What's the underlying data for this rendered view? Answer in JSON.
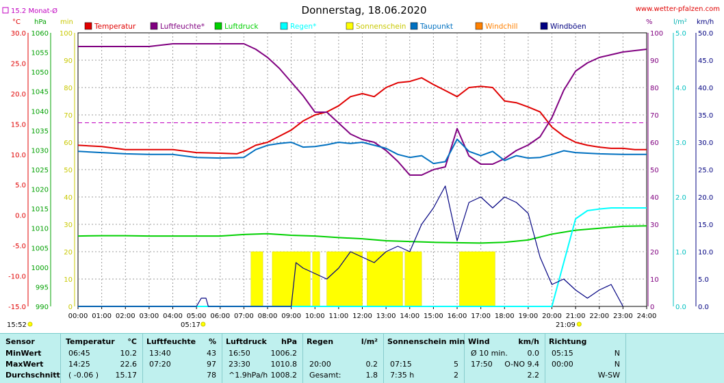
{
  "title": "Donnerstag, 18.06.2020",
  "site": "www.wetter-pfalzen.com",
  "month_avg_label": "15.2 Monat-Ø",
  "axis_units": {
    "temp": "°C",
    "press": "hPa",
    "min": "min",
    "percent": "%",
    "rain": "l/m²",
    "wind": "km/h"
  },
  "legend": [
    {
      "label": "Temperatur",
      "color": "#e00000"
    },
    {
      "label": "Luftfeuchte*",
      "color": "#800080"
    },
    {
      "label": "Luftdruck",
      "color": "#00d000"
    },
    {
      "label": "Regen*",
      "color": "#00ffff"
    },
    {
      "label": "Sonnenschein",
      "color": "#ffff00"
    },
    {
      "label": "Taupunkt",
      "color": "#0070c0"
    },
    {
      "label": "Windchill",
      "color": "#ff8000"
    },
    {
      "label": "Windböen",
      "color": "#000080"
    }
  ],
  "annotations": {
    "sunrise": "05:17",
    "sunset": "21:09",
    "time_now": "15:52"
  },
  "chart_data": {
    "type": "line",
    "x_label_ticks": [
      "00:00",
      "01:00",
      "02:00",
      "03:00",
      "04:00",
      "05:00",
      "06:00",
      "07:00",
      "08:00",
      "09:00",
      "10:00",
      "11:00",
      "12:00",
      "13:00",
      "14:00",
      "15:00",
      "16:00",
      "17:00",
      "18:00",
      "19:00",
      "20:00",
      "21:00",
      "22:00",
      "23:00",
      "24:00"
    ],
    "axes": {
      "temp": {
        "range": [
          -15,
          30
        ],
        "ticks": [
          "30.0",
          "25.0",
          "20.0",
          "15.0",
          "10.0",
          "5.0",
          "0.0",
          "-5.0",
          "-10.0",
          "-15.0"
        ]
      },
      "press": {
        "range": [
          990,
          1060
        ],
        "ticks": [
          "1060",
          "1055",
          "1050",
          "1045",
          "1040",
          "1035",
          "1030",
          "1025",
          "1020",
          "1015",
          "1010",
          "1005",
          "1000",
          "995",
          "990"
        ]
      },
      "sun_min": {
        "range": [
          0,
          100
        ],
        "ticks": [
          "100",
          "90",
          "80",
          "70",
          "60",
          "50",
          "40",
          "30",
          "20",
          "10",
          "0"
        ]
      },
      "humidity": {
        "range": [
          0,
          100
        ],
        "ticks": [
          "100",
          "90",
          "80",
          "70",
          "60",
          "50",
          "40",
          "30",
          "20",
          "10",
          "0"
        ]
      },
      "rain": {
        "range": [
          0,
          5
        ],
        "ticks": [
          "5.0",
          "4.0",
          "3.0",
          "2.0",
          "1.0",
          "0.0"
        ]
      },
      "wind": {
        "range": [
          0,
          50
        ],
        "ticks": [
          "50.0",
          "45.0",
          "40.0",
          "35.0",
          "30.0",
          "25.0",
          "20.0",
          "15.0",
          "10.0",
          "5.0",
          "0.0"
        ]
      }
    },
    "month_avg_temp": 15.2,
    "series": [
      {
        "name": "Temperatur",
        "axis": "temp",
        "color": "#e00000",
        "x": [
          0,
          1,
          2,
          3,
          4,
          5,
          6,
          6.7,
          7,
          7.5,
          8,
          8.5,
          9,
          9.5,
          10,
          10.5,
          11,
          11.5,
          12,
          12.5,
          13,
          13.5,
          14,
          14.5,
          15,
          15.5,
          16,
          16.5,
          17,
          17.5,
          18,
          18.5,
          19,
          19.5,
          20,
          20.5,
          21,
          21.5,
          22,
          22.5,
          23,
          23.5,
          24
        ],
        "y": [
          11.5,
          11.3,
          10.8,
          10.8,
          10.8,
          10.3,
          10.2,
          10.1,
          10.5,
          11.5,
          12,
          13,
          14,
          15.5,
          16.5,
          17,
          18,
          19.5,
          20,
          19.5,
          21,
          21.8,
          22,
          22.6,
          21.5,
          20.5,
          19.5,
          21,
          21.2,
          21,
          18.8,
          18.5,
          17.8,
          17,
          14.5,
          13,
          12,
          11.5,
          11.2,
          11,
          11,
          10.8,
          10.8
        ]
      },
      {
        "name": "Luftfeuchte*",
        "axis": "humidity",
        "color": "#800080",
        "x": [
          0,
          1,
          2,
          3,
          4,
          5,
          6,
          7,
          7.5,
          8,
          8.5,
          9,
          9.5,
          10,
          10.5,
          11,
          11.5,
          12,
          12.5,
          13,
          13.5,
          14,
          14.5,
          15,
          15.5,
          16,
          16.5,
          17,
          17.5,
          18,
          18.5,
          19,
          19.5,
          20,
          20.5,
          21,
          21.5,
          22,
          22.5,
          23,
          23.5,
          24
        ],
        "y": [
          95,
          95,
          95,
          95,
          96,
          96,
          96,
          96,
          94,
          91,
          87,
          82,
          77,
          71,
          71,
          67,
          63,
          61,
          60,
          57,
          53,
          48,
          48,
          50,
          51,
          65,
          55,
          52,
          52,
          54,
          57,
          59,
          62,
          69,
          79,
          86,
          89,
          91,
          92,
          93,
          93.5,
          94
        ]
      },
      {
        "name": "Luftdruck",
        "axis": "press",
        "color": "#00d000",
        "x": [
          0,
          1,
          2,
          3,
          4,
          5,
          6,
          7,
          8,
          9,
          10,
          11,
          12,
          13,
          14,
          15,
          16,
          17,
          18,
          19,
          20,
          21,
          22,
          23,
          24
        ],
        "y": [
          1008,
          1008.1,
          1008.1,
          1008,
          1008,
          1008,
          1008,
          1008.4,
          1008.6,
          1008.2,
          1008,
          1007.6,
          1007.3,
          1006.8,
          1006.6,
          1006.4,
          1006.3,
          1006.2,
          1006.4,
          1007,
          1008.5,
          1009.5,
          1010,
          1010.5,
          1010.6
        ]
      },
      {
        "name": "Regen*",
        "axis": "rain",
        "color": "#00ffff",
        "x": [
          0,
          20,
          20.5,
          21,
          21.5,
          22,
          22.5,
          23,
          23.5,
          24
        ],
        "y": [
          0,
          0,
          0.8,
          1.6,
          1.75,
          1.78,
          1.8,
          1.8,
          1.8,
          1.8
        ]
      },
      {
        "name": "Taupunkt",
        "axis": "temp",
        "color": "#0070c0",
        "x": [
          0,
          1,
          2,
          3,
          4,
          5,
          6,
          7,
          7.5,
          8,
          8.5,
          9,
          9.5,
          10,
          10.5,
          11,
          11.5,
          12,
          12.5,
          13,
          13.5,
          14,
          14.5,
          15,
          15.5,
          16,
          16.5,
          17,
          17.5,
          18,
          18.5,
          19,
          19.5,
          20,
          20.5,
          21,
          22,
          23,
          24
        ],
        "y": [
          10.5,
          10.3,
          10.1,
          10,
          10,
          9.5,
          9.4,
          9.5,
          10.8,
          11.5,
          11.8,
          12,
          11.2,
          11.3,
          11.6,
          12,
          11.8,
          12,
          11.5,
          11,
          10,
          9.5,
          9.8,
          8.5,
          8.8,
          12.5,
          10.5,
          9.8,
          10.5,
          9,
          9.8,
          9.4,
          9.5,
          10,
          10.6,
          10.3,
          10.1,
          10,
          10
        ]
      },
      {
        "name": "Windböen",
        "axis": "wind",
        "color": "#000080",
        "x": [
          0,
          5,
          5.2,
          5.4,
          5.5,
          9,
          9.2,
          9.5,
          10,
          10.5,
          11,
          11.5,
          12,
          12.5,
          13,
          13.5,
          14,
          14.5,
          15,
          15.5,
          16,
          16.5,
          17,
          17.5,
          18,
          18.5,
          19,
          19.5,
          20,
          20.5,
          21,
          21.5,
          22,
          22.5,
          23
        ],
        "y": [
          0,
          0,
          1.5,
          1.5,
          0,
          0,
          8,
          7,
          6,
          5,
          7,
          10,
          9,
          8,
          10,
          11,
          10,
          15,
          18,
          22,
          12,
          19,
          20,
          18,
          20,
          19,
          17,
          9,
          4,
          5,
          3,
          1.5,
          3,
          4,
          0
        ]
      }
    ],
    "sunshine_bars": [
      {
        "from": 7.3,
        "to": 7.8
      },
      {
        "from": 8.2,
        "to": 9.8
      },
      {
        "from": 9.9,
        "to": 10.2
      },
      {
        "from": 10.5,
        "to": 12.0
      },
      {
        "from": 12.2,
        "to": 13.7
      },
      {
        "from": 13.8,
        "to": 14.5
      },
      {
        "from": 16.1,
        "to": 17.6
      }
    ]
  },
  "stats": {
    "headers": {
      "sensor": "Sensor",
      "temp": "Temperatur",
      "temp_unit": "°C",
      "hum": "Luftfeuchte",
      "hum_unit": "%",
      "press": "Luftdruck",
      "press_unit": "hPa",
      "rain": "Regen",
      "rain_unit": "l/m²",
      "sun": "Sonnenschein min",
      "wind": "Wind",
      "wind_unit": "km/h",
      "dir": "Richtung"
    },
    "rows": [
      {
        "label": "MinWert",
        "t_time": "06:45",
        "t_val": "10.2",
        "h_time": "13:40",
        "h_val": "43",
        "p_time": "16:50",
        "p_val": "1006.2",
        "r_time": "",
        "r_val": "",
        "s_time": "",
        "s_val": "",
        "w_time": "Ø 10 min.",
        "w_val": "0.0",
        "d_time": "05:15",
        "d_val": "N"
      },
      {
        "label": "MaxWert",
        "t_time": "14:25",
        "t_val": "22.6",
        "h_time": "07:20",
        "h_val": "97",
        "p_time": "23:30",
        "p_val": "1010.8",
        "r_time": "20:00",
        "r_val": "0.2",
        "s_time": "07:15",
        "s_val": "5",
        "w_time": "17:50",
        "w_val": "O-NO 9.4",
        "d_time": "00:00",
        "d_val": "N"
      },
      {
        "label": "Durchschnitt",
        "t_time": "( -0.06 )",
        "t_val": "15.17",
        "h_time": "",
        "h_val": "78",
        "p_time": "^1.9hPa/h",
        "p_val": "1008.2",
        "r_time": "Gesamt:",
        "r_val": "1.8",
        "s_time": "7:35 h",
        "s_val": "2",
        "w_time": "",
        "w_val": "2.2",
        "d_time": "",
        "d_val": "W-SW"
      }
    ]
  }
}
